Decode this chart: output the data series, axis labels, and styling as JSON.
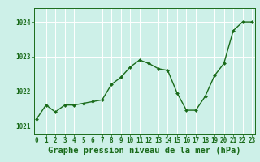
{
  "x": [
    0,
    1,
    2,
    3,
    4,
    5,
    6,
    7,
    8,
    9,
    10,
    11,
    12,
    13,
    14,
    15,
    16,
    17,
    18,
    19,
    20,
    21,
    22,
    23
  ],
  "y": [
    1021.2,
    1021.6,
    1021.4,
    1021.6,
    1021.6,
    1021.65,
    1021.7,
    1021.75,
    1022.2,
    1022.4,
    1022.7,
    1022.9,
    1022.8,
    1022.65,
    1022.6,
    1021.95,
    1021.45,
    1021.45,
    1021.85,
    1022.45,
    1022.8,
    1023.75,
    1024.0,
    1024.0
  ],
  "line_color": "#1a6b1a",
  "marker": "D",
  "marker_size": 2.0,
  "line_width": 1.0,
  "bg_color": "#cdf0e8",
  "grid_color": "#ffffff",
  "xlabel": "Graphe pression niveau de la mer (hPa)",
  "xlabel_fontsize": 7.5,
  "xlabel_color": "#1a6b1a",
  "tick_color": "#1a6b1a",
  "tick_fontsize": 5.5,
  "ytick_labels": [
    "1021",
    "1022",
    "1023",
    "1024"
  ],
  "ytick_values": [
    1021,
    1022,
    1023,
    1024
  ],
  "ylim": [
    1020.75,
    1024.4
  ],
  "xlim": [
    -0.3,
    23.3
  ],
  "xtick_values": [
    0,
    1,
    2,
    3,
    4,
    5,
    6,
    7,
    8,
    9,
    10,
    11,
    12,
    13,
    14,
    15,
    16,
    17,
    18,
    19,
    20,
    21,
    22,
    23
  ]
}
